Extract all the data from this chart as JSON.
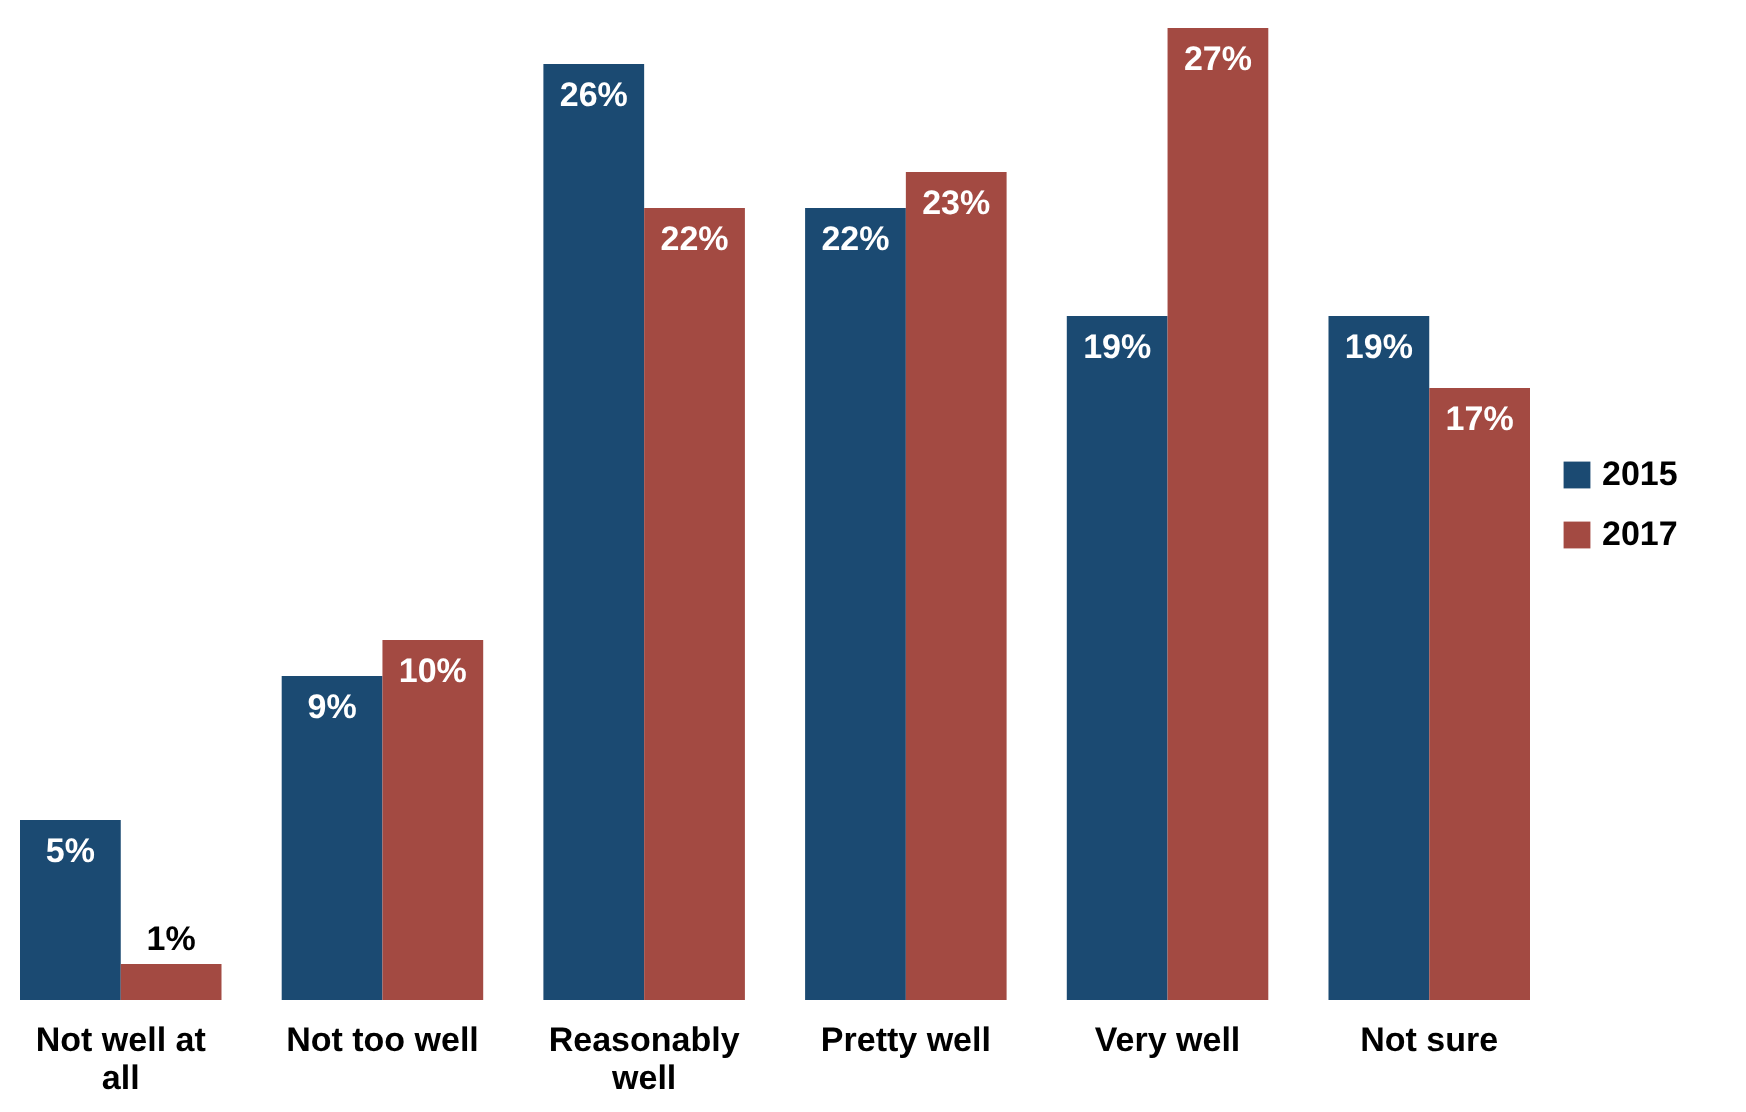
{
  "chart_data": {
    "type": "bar",
    "categories": [
      "Not well at all",
      "Not too well",
      "Reasonably well",
      "Pretty well",
      "Very well",
      "Not sure"
    ],
    "series": [
      {
        "name": "2015",
        "color": "#1b4a72",
        "values": [
          5,
          9,
          26,
          22,
          19,
          19
        ],
        "value_labels": [
          "5%",
          "9%",
          "26%",
          "22%",
          "19%",
          "19%"
        ]
      },
      {
        "name": "2017",
        "color": "#a34a42",
        "values": [
          1,
          10,
          22,
          23,
          27,
          17
        ],
        "value_labels": [
          "1%",
          "10%",
          "22%",
          "23%",
          "27%",
          "17%"
        ]
      }
    ],
    "legend": "right"
  }
}
